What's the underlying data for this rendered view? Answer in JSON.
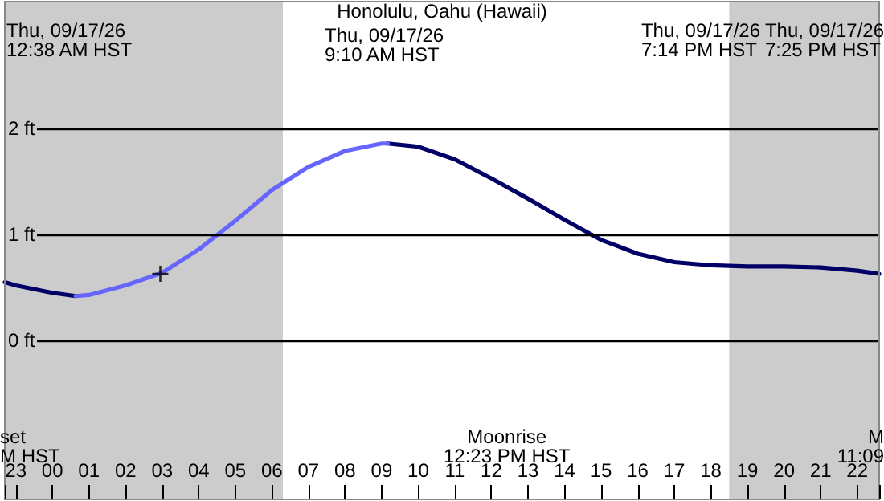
{
  "chart_data": {
    "type": "line",
    "title": "Honolulu, Oahu (Hawaii)",
    "xlim": [
      "--09-16T22:42",
      "--09-17T22:36"
    ],
    "ylim": [
      -1.5,
      3.2
    ],
    "xticks": [
      {
        "value": "--09-16T23:00",
        "label": "23"
      },
      {
        "value": "--09-17T00:00",
        "label": "00"
      },
      {
        "value": "--09-17T01:00",
        "label": "01"
      },
      {
        "value": "--09-17T02:00",
        "label": "02"
      },
      {
        "value": "--09-17T03:00",
        "label": "03"
      },
      {
        "value": "--09-17T04:00",
        "label": "04"
      },
      {
        "value": "--09-17T05:00",
        "label": "05"
      },
      {
        "value": "--09-17T06:00",
        "label": "06"
      },
      {
        "value": "--09-17T07:00",
        "label": "07"
      },
      {
        "value": "--09-17T08:00",
        "label": "08"
      },
      {
        "value": "--09-17T09:00",
        "label": "09"
      },
      {
        "value": "--09-17T10:00",
        "label": "10"
      },
      {
        "value": "--09-17T11:00",
        "label": "11"
      },
      {
        "value": "--09-17T12:00",
        "label": "12"
      },
      {
        "value": "--09-17T13:00",
        "label": "13"
      },
      {
        "value": "--09-17T14:00",
        "label": "14"
      },
      {
        "value": "--09-17T15:00",
        "label": "15"
      },
      {
        "value": "--09-17T16:00",
        "label": "16"
      },
      {
        "value": "--09-17T17:00",
        "label": "17"
      },
      {
        "value": "--09-17T18:00",
        "label": "18"
      },
      {
        "value": "--09-17T19:00",
        "label": "19"
      },
      {
        "value": "--09-17T20:00",
        "label": "20"
      },
      {
        "value": "--09-17T21:00",
        "label": "21"
      },
      {
        "value": "--09-17T22:00",
        "label": "22"
      }
    ],
    "yticks": [
      {
        "value": 0,
        "label": "0 ft"
      },
      {
        "value": 1,
        "label": "1 ft"
      },
      {
        "value": 2,
        "label": "2 ft"
      }
    ],
    "grid": "y",
    "marker": "none",
    "line_style": "solid",
    "series": [
      {
        "color": "#000066",
        "x": [
          "--09-16T22:42",
          "--09-16T23:00",
          "--09-17T00:00",
          "--09-17T00:38",
          "--09-17T01:00",
          "--09-17T09:10",
          "--09-17T10:00",
          "--09-17T11:00",
          "--09-17T12:00",
          "--09-17T13:00",
          "--09-17T14:00",
          "--09-17T15:00",
          "--09-17T16:00",
          "--09-17T17:00",
          "--09-17T18:00",
          "--09-17T19:00",
          "--09-17T20:00",
          "--09-17T21:00",
          "--09-17T22:00",
          "--09-17T22:36"
        ],
        "values": [
          0.55,
          0.52,
          0.45,
          0.42,
          null,
          1.86,
          1.83,
          1.71,
          1.53,
          1.34,
          1.14,
          0.95,
          0.82,
          0.74,
          0.71,
          0.7,
          0.7,
          0.69,
          0.66,
          0.63
        ]
      },
      {
        "color": "#6666ff",
        "x": [
          "--09-17T00:38",
          "--09-17T01:00",
          "--09-17T02:00",
          "--09-17T03:00",
          "--09-17T04:00",
          "--09-17T05:00",
          "--09-17T06:00",
          "--09-17T07:00",
          "--09-17T08:00",
          "--09-17T09:00",
          "--09-17T09:10"
        ],
        "values": [
          0.42,
          0.43,
          0.52,
          0.64,
          0.86,
          1.13,
          1.42,
          1.64,
          1.79,
          1.86,
          1.86
        ]
      },
      {
        "type": "scatter",
        "marker": "cross",
        "color": "#000000",
        "x": [
          "--09-17T02:57"
        ],
        "values": [
          0.63
        ]
      }
    ],
    "bands": [
      {
        "axis": "x",
        "from": "--09-16T22:42",
        "to": "--09-17T06:18",
        "color": "#cccccc"
      },
      {
        "axis": "x",
        "from": "--09-17T18:30",
        "to": "--09-17T22:36",
        "color": "#cccccc"
      }
    ],
    "annotations": [
      "Thu, 09/17/26\n12:38 AM HST",
      "Thu, 09/17/26\n9:10 AM HST",
      "Thu, 09/17/26\n7:14 PM HST",
      "Thu, 09/17/26\n7:25 PM HST",
      "Moonrise\n12:23 PM HST",
      "set\nM HST",
      "M\n11:09"
    ]
  }
}
